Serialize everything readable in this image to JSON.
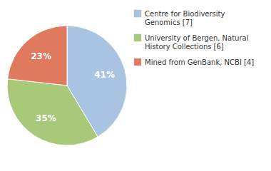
{
  "chart_data": {
    "type": "pie",
    "categories": [
      "Centre for Biodiversity\nGenomics [7]",
      "University of Bergen, Natural\nHistory Collections [6]",
      "Mined from GenBank, NCBI [4]"
    ],
    "values": [
      41,
      35,
      23
    ],
    "value_labels": [
      "41%",
      "35%",
      "23%"
    ],
    "colors": [
      "#a8c4e0",
      "#a8c87a",
      "#e07a5f"
    ],
    "data_labels": true,
    "legend": "right"
  }
}
